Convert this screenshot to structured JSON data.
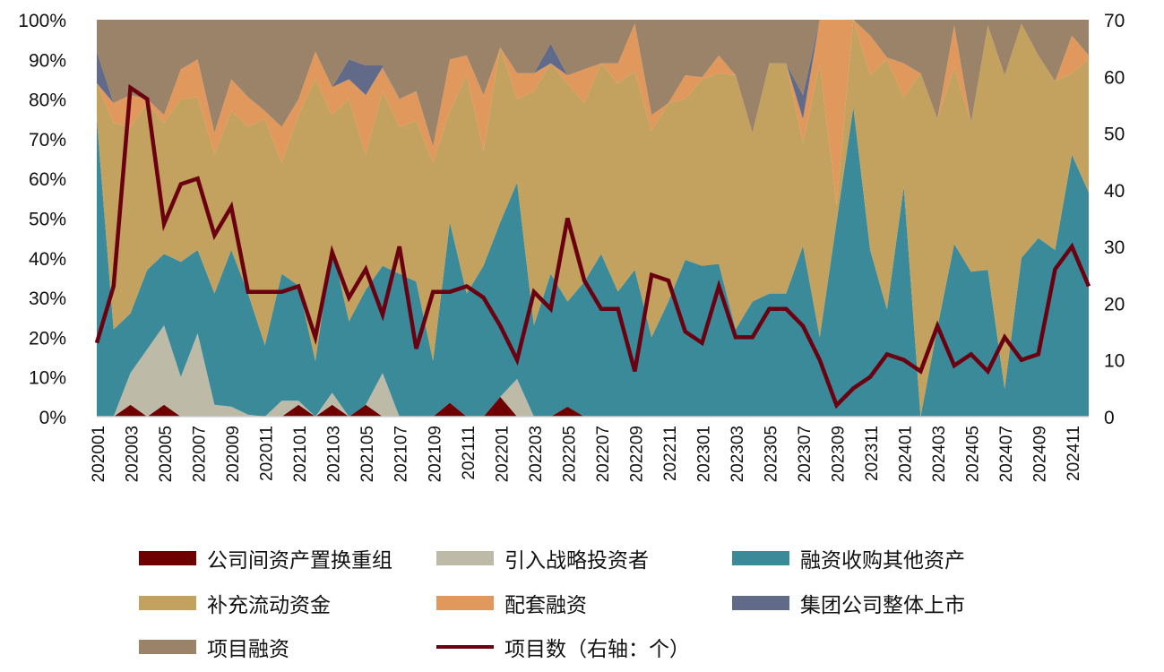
{
  "chart_data": {
    "type": "area",
    "stacked": "percent",
    "categories": [
      "202001",
      "202002",
      "202003",
      "202004",
      "202005",
      "202006",
      "202007",
      "202008",
      "202009",
      "202010",
      "202011",
      "202012",
      "202101",
      "202102",
      "202103",
      "202104",
      "202105",
      "202106",
      "202107",
      "202108",
      "202109",
      "202110",
      "202111",
      "202112",
      "202201",
      "202202",
      "202203",
      "202204",
      "202205",
      "202206",
      "202207",
      "202208",
      "202209",
      "202210",
      "202211",
      "202212",
      "202301",
      "202302",
      "202303",
      "202304",
      "202305",
      "202306",
      "202307",
      "202308",
      "202309",
      "202310",
      "202311",
      "202312",
      "202401",
      "202402",
      "202403",
      "202404",
      "202405",
      "202406",
      "202407",
      "202408",
      "202409",
      "202410",
      "202411",
      "202412"
    ],
    "x_tick_labels": [
      "202001",
      "202003",
      "202005",
      "202007",
      "202009",
      "202011",
      "202101",
      "202103",
      "202105",
      "202107",
      "202109",
      "202111",
      "202201",
      "202203",
      "202205",
      "202207",
      "202209",
      "202211",
      "202301",
      "202303",
      "202305",
      "202307",
      "202309",
      "202311",
      "202401",
      "202403",
      "202405",
      "202407",
      "202409",
      "202411"
    ],
    "y_left": {
      "range": [
        0,
        100
      ],
      "ticks": [
        "0%",
        "10%",
        "20%",
        "30%",
        "40%",
        "50%",
        "60%",
        "70%",
        "80%",
        "90%",
        "100%"
      ]
    },
    "y_right": {
      "range": [
        0,
        70
      ],
      "ticks": [
        "0",
        "10",
        "20",
        "30",
        "40",
        "50",
        "60",
        "70"
      ]
    },
    "legend_position": "bottom",
    "grid": false,
    "series": [
      {
        "name": "公司间资产置换重组",
        "color": "#6e0000",
        "values": [
          0,
          0,
          3,
          0,
          3,
          0,
          0,
          0,
          0,
          0,
          0,
          0,
          3,
          0,
          3,
          0,
          3,
          0,
          0,
          0,
          0,
          3.5,
          0,
          0,
          5,
          0,
          0,
          0,
          2.5,
          0,
          0,
          0,
          0,
          0,
          0,
          0,
          0,
          0,
          0,
          0,
          0,
          0,
          0,
          0,
          0,
          0,
          0,
          0,
          0,
          0,
          0,
          0,
          0,
          0,
          0,
          0,
          0,
          0,
          0,
          0
        ]
      },
      {
        "name": "引入战略投资者",
        "color": "#bdbba8",
        "values": [
          0,
          0,
          8,
          17,
          20,
          10,
          21,
          3,
          2.5,
          0.5,
          0,
          4,
          1,
          0,
          3,
          0,
          0,
          11,
          0,
          0,
          0,
          0,
          0,
          0,
          0,
          9.5,
          0,
          0,
          0,
          0,
          0,
          0,
          0,
          0,
          0,
          0,
          0,
          0,
          0,
          0,
          0,
          0,
          0,
          0,
          0,
          0,
          0,
          0,
          0,
          0,
          0,
          0,
          0,
          0,
          0,
          0,
          0,
          0,
          0,
          0
        ]
      },
      {
        "name": "融资收购其他资产",
        "color": "#3a8a9a",
        "values": [
          75,
          22,
          15,
          20,
          18,
          29,
          21,
          28,
          39.5,
          30.5,
          18,
          32,
          29,
          14,
          37,
          24,
          29,
          27,
          36,
          34,
          14,
          45.5,
          31,
          38,
          44,
          49.5,
          23,
          36,
          26.5,
          34,
          41,
          31.5,
          37,
          20,
          29,
          39.5,
          38,
          38.5,
          22,
          29,
          31,
          31,
          43,
          20,
          49,
          78,
          42,
          27,
          58,
          0,
          22.5,
          43.5,
          36.5,
          37,
          7,
          40,
          45,
          42,
          66,
          56.5
        ]
      },
      {
        "name": "补充流动资金",
        "color": "#c3a15e",
        "values": [
          9,
          52,
          47,
          42,
          33,
          41,
          38.5,
          35,
          35,
          42,
          57,
          28,
          43,
          71,
          33,
          56,
          34,
          44,
          37,
          40.5,
          50,
          28,
          55,
          29,
          44,
          21,
          59,
          53,
          55,
          45,
          48,
          52.5,
          50,
          52,
          50,
          40.5,
          47,
          48,
          64,
          42.5,
          58,
          58,
          26,
          69,
          4.5,
          22,
          44,
          63,
          22.5,
          86.5,
          52.5,
          44.5,
          37.5,
          61.5,
          79,
          59,
          46,
          42.5,
          20.5,
          33.5
        ]
      },
      {
        "name": "配套融资",
        "color": "#e0985c",
        "values": [
          0,
          5,
          8,
          1,
          2,
          7.5,
          9.5,
          5.5,
          8,
          7.5,
          2,
          9,
          4,
          7,
          7,
          5,
          15,
          6,
          7,
          7.5,
          4,
          13,
          5,
          14,
          0,
          6.5,
          4.5,
          0,
          2,
          8.5,
          0,
          5,
          12,
          4,
          0,
          6,
          0.5,
          4.5,
          0,
          0,
          0,
          0,
          6,
          11,
          46.5,
          0,
          10,
          0.5,
          8.5,
          0,
          0,
          10.5,
          0,
          0,
          0,
          0,
          0,
          0,
          9.5,
          1
        ]
      },
      {
        "name": "集团公司整体上市",
        "color": "#626a8a",
        "values": [
          8,
          0,
          0,
          0,
          0,
          0,
          0,
          0,
          0,
          0,
          0,
          0,
          0,
          0,
          0,
          5,
          7.5,
          0.5,
          0,
          0,
          0,
          0,
          0,
          0,
          0,
          0,
          0,
          5,
          0,
          0,
          0,
          0,
          0,
          0,
          0,
          0,
          0,
          0,
          0,
          0,
          0,
          0,
          6,
          0,
          0,
          0,
          0,
          0,
          0,
          0,
          0,
          0,
          0,
          0,
          0,
          0,
          0,
          0,
          0,
          0
        ]
      },
      {
        "name": "项目融资",
        "color": "#9b836a",
        "values": [
          8,
          21,
          19,
          20,
          24,
          12.5,
          10,
          28.5,
          15,
          19.5,
          23,
          27,
          20,
          8,
          17,
          10,
          11.5,
          11.5,
          20,
          18,
          32,
          10,
          9,
          19,
          7,
          13.5,
          13.5,
          6,
          14,
          12.5,
          11,
          11,
          1,
          24,
          21,
          14,
          14.5,
          9,
          14,
          28.5,
          11,
          11,
          19,
          0,
          0,
          0,
          4,
          9.5,
          11,
          13.5,
          25,
          1.5,
          26,
          1.5,
          14,
          1,
          9,
          15.5,
          4,
          9
        ]
      }
    ],
    "line_series": {
      "name": "项目数（右轴：个）",
      "axis": "right",
      "color": "#6b0010",
      "values": [
        13,
        23,
        58,
        56,
        34,
        41,
        42,
        32,
        37,
        22,
        22,
        22,
        23,
        14,
        29,
        21,
        26,
        18,
        30,
        12,
        22,
        22,
        23,
        21,
        16,
        10,
        22,
        19,
        35,
        24,
        19,
        19,
        8,
        25,
        24,
        15,
        13,
        23,
        14,
        14,
        19,
        19,
        16,
        10,
        2,
        5,
        7,
        11,
        10,
        8,
        16,
        9,
        11,
        8,
        14,
        10,
        11,
        26,
        30,
        23
      ]
    }
  }
}
